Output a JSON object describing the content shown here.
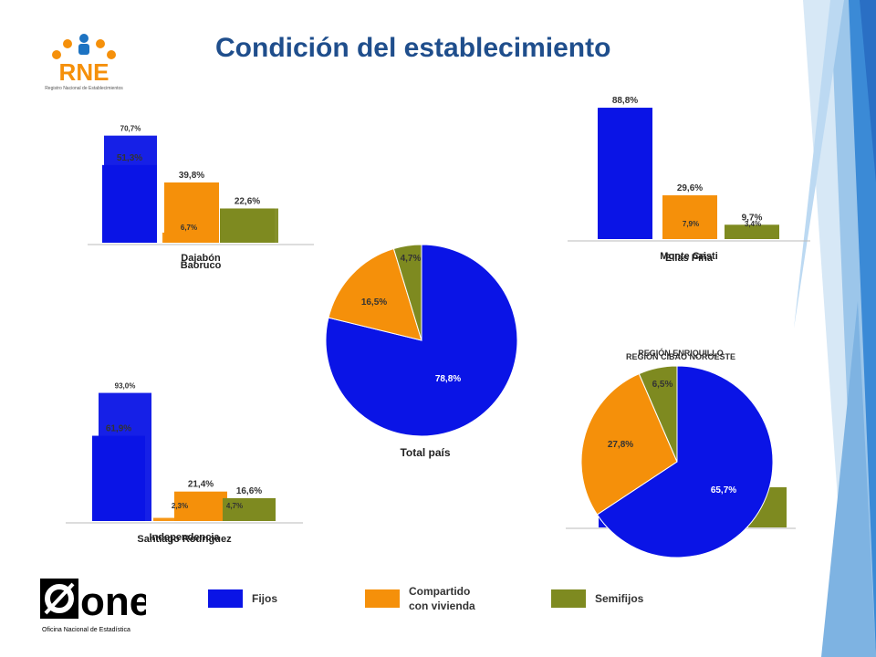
{
  "title": "Condición del establecimiento",
  "logos": {
    "rne_text": "RNE",
    "rne_subtitle": "Registro Nacional de Establecimientos",
    "one_text": "one",
    "one_subtitle": "Oficina Nacional de Estadística"
  },
  "legend": [
    {
      "label": "Fijos",
      "color": "#0a14e6"
    },
    {
      "label": "Compartido con vivienda",
      "color": "#f5900a"
    },
    {
      "label": "Semifijos",
      "color": "#7e8a20"
    }
  ],
  "chart_data": [
    {
      "type": "bar",
      "name": "top-left",
      "categories": [
        "Fijos",
        "Compartido con vivienda",
        "Semifijos"
      ],
      "series": [
        {
          "name": "Dajabón",
          "values": [
            51.3,
            39.8,
            22.6
          ]
        },
        {
          "name": "Baoruco",
          "values": [
            70.7,
            6.7,
            22.6
          ]
        }
      ],
      "value_labels": [
        [
          "51,3%",
          "39,8%",
          "22,6%"
        ],
        [
          "70,7%",
          "6,7%",
          ""
        ]
      ],
      "xlabels": [
        "Dajabón",
        "Baoruco"
      ],
      "ylim": [
        0,
        100
      ]
    },
    {
      "type": "bar",
      "name": "top-right",
      "categories": [
        "Fijos",
        "Compartido con vivienda",
        "Semifijos"
      ],
      "series": [
        {
          "name": "Monte Cristi",
          "values": [
            88.8,
            29.6,
            9.7
          ]
        },
        {
          "name": "Elías Piña",
          "values": [
            88.8,
            7.9,
            3.4
          ]
        }
      ],
      "value_labels": [
        [
          "88,8%",
          "29,6%",
          "9,7%"
        ],
        [
          "",
          "7,9%",
          "3,4%"
        ]
      ],
      "xlabels": [
        "Monte Cristi",
        "Elías Piña"
      ],
      "ylim": [
        0,
        100
      ]
    },
    {
      "type": "bar",
      "name": "bottom-left",
      "categories": [
        "Fijos",
        "Compartido con vivienda",
        "Semifijos"
      ],
      "series": [
        {
          "name": "Santiago Rodríguez",
          "values": [
            61.9,
            21.4,
            16.6
          ]
        },
        {
          "name": "Independencia",
          "values": [
            93.0,
            2.3,
            4.7
          ]
        }
      ],
      "value_labels": [
        [
          "61,9%",
          "21,4%",
          "16,6%"
        ],
        [
          "93,0%",
          "2,3%",
          "4,7%"
        ]
      ],
      "xlabels": [
        "Santiago Rodríguez",
        "Independencia"
      ],
      "ylim": [
        0,
        100
      ]
    },
    {
      "type": "pie",
      "name": "center",
      "title": "Total país",
      "labels": [
        "Fijos",
        "Compartido con vivienda",
        "Semifijos"
      ],
      "values": [
        78.8,
        16.5,
        4.7
      ],
      "value_labels": [
        "78,8%",
        "16,5%",
        "4,7%"
      ]
    },
    {
      "type": "pie",
      "name": "bottom-right",
      "titles": [
        "REGIÓN ENRIQUILLO",
        "REGIÓN CIBAO NOROESTE"
      ],
      "labels": [
        "Fijos",
        "Compartido con vivienda",
        "Semifijos"
      ],
      "values": [
        65.7,
        27.8,
        6.5
      ],
      "value_labels": [
        "65,7%",
        "27,8%",
        "6,5%"
      ]
    }
  ]
}
